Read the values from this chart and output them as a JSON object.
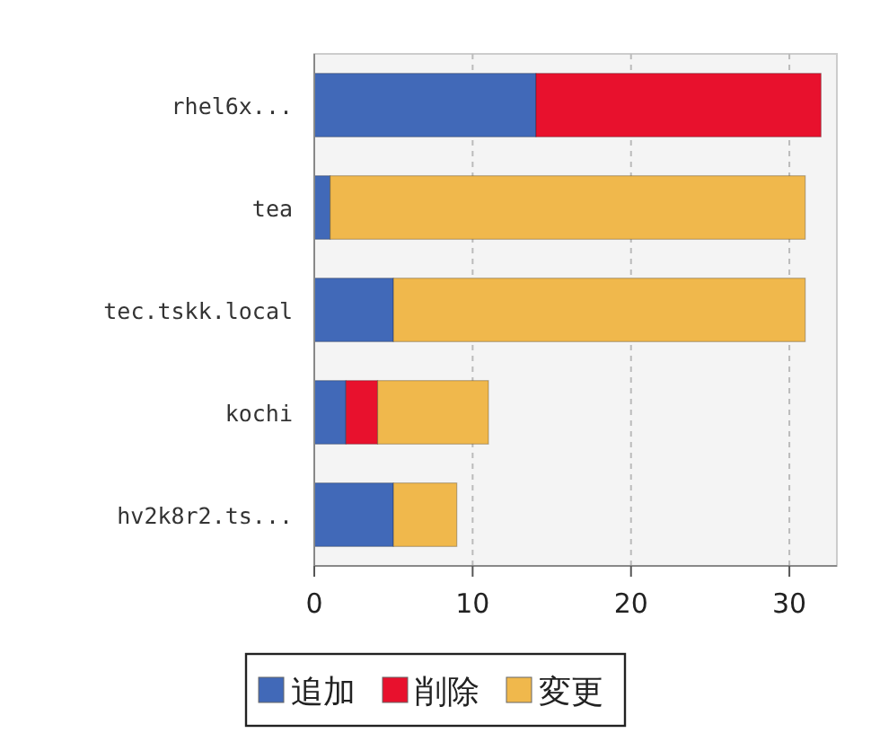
{
  "chart_data": {
    "type": "bar",
    "orientation": "horizontal",
    "stacked": true,
    "categories": [
      "rhel6x...",
      "tea",
      "tec.tskk.local",
      "kochi",
      "hv2k8r2.ts..."
    ],
    "series": [
      {
        "name": "追加",
        "color": "#4169b8",
        "values": [
          14,
          1,
          5,
          2,
          5
        ]
      },
      {
        "name": "削除",
        "color": "#e8112d",
        "values": [
          18,
          0,
          0,
          2,
          0
        ]
      },
      {
        "name": "変更",
        "color": "#f0b84c",
        "values": [
          0,
          30,
          26,
          7,
          4
        ]
      }
    ],
    "xlim": [
      0,
      33
    ],
    "xticks": [
      0,
      10,
      20,
      30
    ],
    "grid": "x",
    "legend": "bottom"
  }
}
